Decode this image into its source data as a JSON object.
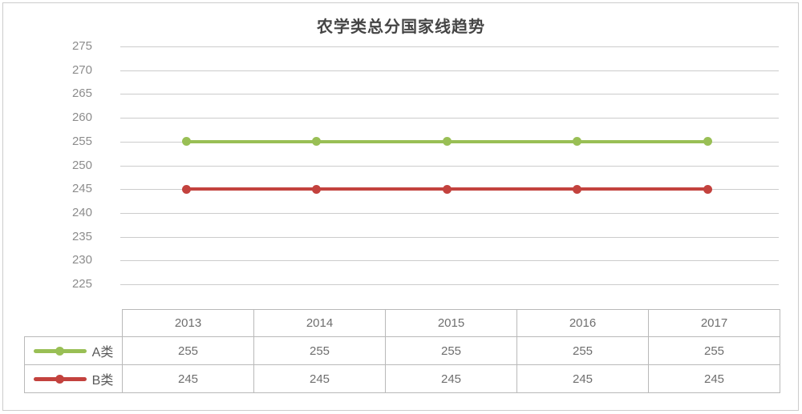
{
  "card": {
    "title": "农学类总分国家线趋势"
  },
  "colors": {
    "series_a": "#99bf55",
    "series_b": "#c3423e",
    "gridline": "#cccccc",
    "frame_border": "#cccccc",
    "table_border": "#b9b9b9",
    "axis_label_text": "#8c8c8c",
    "table_text": "#6e6e6e",
    "title_text": "#454545"
  },
  "chart_data": {
    "type": "line",
    "title": "农学类总分国家线趋势",
    "categories": [
      "2013",
      "2014",
      "2015",
      "2016",
      "2017"
    ],
    "series": [
      {
        "name": "A类",
        "values": [
          255,
          255,
          255,
          255,
          255
        ],
        "color": "#99bf55"
      },
      {
        "name": "B类",
        "values": [
          245,
          245,
          245,
          245,
          245
        ],
        "color": "#c3423e"
      }
    ],
    "xlabel": "",
    "ylabel": "",
    "ylim": [
      225,
      275
    ],
    "y_ticks": [
      275,
      270,
      265,
      260,
      255,
      250,
      245,
      240,
      235,
      230,
      225
    ],
    "grid": true,
    "legend_position": "table-left-column",
    "marker": "circle"
  }
}
